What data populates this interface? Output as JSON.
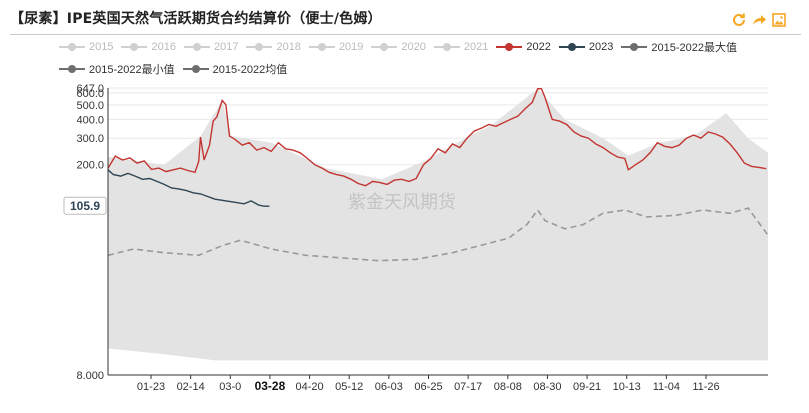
{
  "title": "【尿素】IPE英国天然气活跃期货合约结算价（便士/色姆）",
  "toolbar": {
    "icons": [
      "refresh-icon",
      "share-icon",
      "image-save-icon"
    ],
    "accent": "#f5a623"
  },
  "watermark": "紫金天风期货",
  "legend": {
    "items": [
      {
        "label": "2015",
        "active": false
      },
      {
        "label": "2016",
        "active": false
      },
      {
        "label": "2017",
        "active": false
      },
      {
        "label": "2018",
        "active": false
      },
      {
        "label": "2019",
        "active": false
      },
      {
        "label": "2020",
        "active": false
      },
      {
        "label": "2021",
        "active": false
      },
      {
        "label": "2022",
        "active": true,
        "color": "#c23531"
      },
      {
        "label": "2023",
        "active": true,
        "color": "#2f4554"
      },
      {
        "label": "2015-2022最大值",
        "active": true,
        "color": "#6e6e6e"
      },
      {
        "label": "2015-2022最小值",
        "active": true,
        "color": "#6e6e6e"
      },
      {
        "label": "2015-2022均值",
        "active": true,
        "color": "#6e6e6e"
      }
    ]
  },
  "chart_data": {
    "type": "line",
    "y_axis": {
      "scale": "log",
      "range": [
        8,
        647
      ],
      "tick_labels": [
        "8.000",
        "200.0",
        "300.0",
        "400.0",
        "500.0",
        "600.0",
        "647.0"
      ],
      "tick_values": [
        8,
        200,
        300,
        400,
        500,
        600,
        647
      ],
      "grid": true
    },
    "x_axis": {
      "tick_labels": [
        "01-23",
        "02-14",
        "03-0",
        "03-28",
        "04-20",
        "05-12",
        "06-03",
        "06-25",
        "07-17",
        "08-08",
        "08-30",
        "09-21",
        "10-13",
        "11-04",
        "11-26"
      ],
      "highlighted_tick": "03-28"
    },
    "pointer_label": "105.9",
    "range_band": {
      "name": "2015-2022 range",
      "color": "#e3e3e3"
    },
    "series": [
      {
        "name": "2022",
        "color": "#c23531",
        "style": "solid",
        "points": [
          [
            "01-01",
            190
          ],
          [
            "01-05",
            228
          ],
          [
            "01-09",
            215
          ],
          [
            "01-13",
            222
          ],
          [
            "01-17",
            205
          ],
          [
            "01-21",
            212
          ],
          [
            "01-25",
            186
          ],
          [
            "01-29",
            190
          ],
          [
            "02-02",
            180
          ],
          [
            "02-06",
            185
          ],
          [
            "02-10",
            190
          ],
          [
            "02-14",
            183
          ],
          [
            "02-18",
            178
          ],
          [
            "02-20",
            210
          ],
          [
            "02-21",
            305
          ],
          [
            "02-23",
            215
          ],
          [
            "02-26",
            270
          ],
          [
            "02-28",
            390
          ],
          [
            "03-02",
            415
          ],
          [
            "03-05",
            535
          ],
          [
            "03-07",
            500
          ],
          [
            "03-09",
            310
          ],
          [
            "03-12",
            295
          ],
          [
            "03-16",
            270
          ],
          [
            "03-20",
            280
          ],
          [
            "03-24",
            250
          ],
          [
            "03-28",
            260
          ],
          [
            "04-01",
            245
          ],
          [
            "04-05",
            280
          ],
          [
            "04-09",
            255
          ],
          [
            "04-13",
            250
          ],
          [
            "04-17",
            240
          ],
          [
            "04-21",
            220
          ],
          [
            "04-25",
            200
          ],
          [
            "04-29",
            190
          ],
          [
            "05-03",
            178
          ],
          [
            "05-07",
            172
          ],
          [
            "05-11",
            168
          ],
          [
            "05-15",
            160
          ],
          [
            "05-19",
            150
          ],
          [
            "05-23",
            145
          ],
          [
            "05-27",
            155
          ],
          [
            "05-31",
            152
          ],
          [
            "06-04",
            148
          ],
          [
            "06-08",
            158
          ],
          [
            "06-12",
            160
          ],
          [
            "06-16",
            155
          ],
          [
            "06-20",
            162
          ],
          [
            "06-24",
            200
          ],
          [
            "06-28",
            220
          ],
          [
            "07-02",
            255
          ],
          [
            "07-06",
            240
          ],
          [
            "07-10",
            275
          ],
          [
            "07-14",
            260
          ],
          [
            "07-18",
            300
          ],
          [
            "07-22",
            335
          ],
          [
            "07-26",
            350
          ],
          [
            "07-30",
            370
          ],
          [
            "08-03",
            360
          ],
          [
            "08-07",
            380
          ],
          [
            "08-11",
            400
          ],
          [
            "08-15",
            420
          ],
          [
            "08-19",
            470
          ],
          [
            "08-23",
            520
          ],
          [
            "08-26",
            640
          ],
          [
            "08-28",
            640
          ],
          [
            "08-30",
            560
          ],
          [
            "09-03",
            400
          ],
          [
            "09-07",
            390
          ],
          [
            "09-11",
            370
          ],
          [
            "09-15",
            330
          ],
          [
            "09-19",
            310
          ],
          [
            "09-23",
            300
          ],
          [
            "09-27",
            275
          ],
          [
            "10-01",
            260
          ],
          [
            "10-05",
            240
          ],
          [
            "10-09",
            225
          ],
          [
            "10-13",
            220
          ],
          [
            "10-15",
            185
          ],
          [
            "10-19",
            200
          ],
          [
            "10-23",
            215
          ],
          [
            "10-27",
            240
          ],
          [
            "10-31",
            280
          ],
          [
            "11-04",
            265
          ],
          [
            "11-08",
            260
          ],
          [
            "11-12",
            270
          ],
          [
            "11-16",
            300
          ],
          [
            "11-20",
            315
          ],
          [
            "11-24",
            300
          ],
          [
            "11-28",
            330
          ],
          [
            "12-02",
            320
          ],
          [
            "12-06",
            305
          ],
          [
            "12-10",
            275
          ],
          [
            "12-14",
            240
          ],
          [
            "12-18",
            205
          ],
          [
            "12-22",
            195
          ],
          [
            "12-26",
            192
          ],
          [
            "12-30",
            188
          ]
        ]
      },
      {
        "name": "2023",
        "color": "#2f4554",
        "style": "solid",
        "points": [
          [
            "01-01",
            185
          ],
          [
            "01-04",
            172
          ],
          [
            "01-08",
            168
          ],
          [
            "01-12",
            175
          ],
          [
            "01-16",
            168
          ],
          [
            "01-20",
            160
          ],
          [
            "01-24",
            162
          ],
          [
            "01-28",
            155
          ],
          [
            "02-01",
            148
          ],
          [
            "02-05",
            140
          ],
          [
            "02-09",
            138
          ],
          [
            "02-13",
            135
          ],
          [
            "02-17",
            130
          ],
          [
            "02-21",
            128
          ],
          [
            "02-25",
            123
          ],
          [
            "03-01",
            118
          ],
          [
            "03-05",
            116
          ],
          [
            "03-09",
            114
          ],
          [
            "03-13",
            112
          ],
          [
            "03-17",
            110
          ],
          [
            "03-21",
            115
          ],
          [
            "03-25",
            108
          ],
          [
            "03-28",
            106
          ],
          [
            "03-31",
            105.9
          ]
        ]
      },
      {
        "name": "2015-2022最大值",
        "color": "#999999",
        "style": "dashed",
        "points": [
          [
            "01-01",
            225
          ],
          [
            "02-01",
            200
          ],
          [
            "02-21",
            310
          ],
          [
            "03-05",
            535
          ],
          [
            "03-10",
            310
          ],
          [
            "04-01",
            280
          ],
          [
            "05-01",
            190
          ],
          [
            "06-01",
            160
          ],
          [
            "06-24",
            210
          ],
          [
            "07-15",
            290
          ],
          [
            "08-01",
            370
          ],
          [
            "08-26",
            640
          ],
          [
            "09-10",
            400
          ],
          [
            "10-01",
            300
          ],
          [
            "10-15",
            230
          ],
          [
            "11-01",
            280
          ],
          [
            "11-20",
            310
          ],
          [
            "12-08",
            440
          ],
          [
            "12-20",
            300
          ],
          [
            "12-31",
            240
          ]
        ]
      },
      {
        "name": "2015-2022最小值",
        "color": "#999999",
        "style": "dashed",
        "points": [
          [
            "01-01",
            12
          ],
          [
            "02-01",
            11
          ],
          [
            "03-01",
            10
          ],
          [
            "04-01",
            10
          ],
          [
            "05-01",
            10
          ],
          [
            "06-01",
            10
          ],
          [
            "07-01",
            10
          ],
          [
            "08-01",
            10
          ],
          [
            "09-01",
            10
          ],
          [
            "10-01",
            10
          ],
          [
            "11-01",
            10
          ],
          [
            "12-01",
            10
          ],
          [
            "12-31",
            10
          ]
        ]
      },
      {
        "name": "2015-2022均值",
        "color": "#999999",
        "style": "dashed",
        "points": [
          [
            "01-01",
            50
          ],
          [
            "01-15",
            55
          ],
          [
            "02-01",
            52
          ],
          [
            "02-20",
            50
          ],
          [
            "03-05",
            58
          ],
          [
            "03-15",
            63
          ],
          [
            "04-01",
            55
          ],
          [
            "04-20",
            50
          ],
          [
            "05-10",
            48
          ],
          [
            "05-30",
            46
          ],
          [
            "06-20",
            47
          ],
          [
            "07-10",
            52
          ],
          [
            "07-25",
            58
          ],
          [
            "08-10",
            65
          ],
          [
            "08-20",
            80
          ],
          [
            "08-26",
            100
          ],
          [
            "08-30",
            85
          ],
          [
            "09-10",
            75
          ],
          [
            "09-20",
            80
          ],
          [
            "10-01",
            95
          ],
          [
            "10-13",
            100
          ],
          [
            "10-25",
            90
          ],
          [
            "11-10",
            92
          ],
          [
            "11-25",
            100
          ],
          [
            "12-10",
            95
          ],
          [
            "12-20",
            103
          ],
          [
            "12-31",
            68
          ]
        ]
      }
    ]
  }
}
